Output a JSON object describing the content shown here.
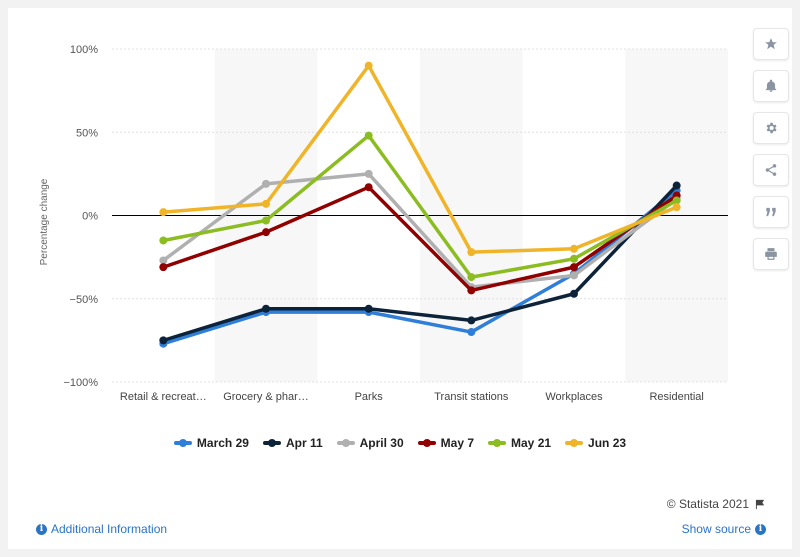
{
  "chart_data": {
    "type": "line",
    "title": "",
    "xlabel": "",
    "ylabel": "Percentage change",
    "categories": [
      "Retail & recreat…",
      "Grocery & phar…",
      "Parks",
      "Transit stations",
      "Workplaces",
      "Residential"
    ],
    "y_ticks": [
      "100%",
      "50%",
      "0%",
      "−50%",
      "−100%"
    ],
    "y_tick_values": [
      100,
      50,
      0,
      -50,
      -100
    ],
    "ylim": [
      -100,
      100
    ],
    "grid": true,
    "legend_position": "bottom",
    "series": [
      {
        "name": "March 29",
        "color": "#2f7ed8",
        "values": [
          -77,
          -58,
          -58,
          -70,
          -35,
          15
        ]
      },
      {
        "name": "Apr 11",
        "color": "#0d233a",
        "values": [
          -75,
          -56,
          -56,
          -63,
          -47,
          18
        ]
      },
      {
        "name": "April 30",
        "color": "#b0b0b0",
        "values": [
          -27,
          19,
          25,
          -43,
          -36,
          10
        ]
      },
      {
        "name": "May 7",
        "color": "#910000",
        "values": [
          -31,
          -10,
          17,
          -45,
          -31,
          12
        ]
      },
      {
        "name": "May 21",
        "color": "#8bbc21",
        "values": [
          -15,
          -3,
          48,
          -37,
          -26,
          9
        ]
      },
      {
        "name": "Jun 23",
        "color": "#f0b429",
        "values": [
          2,
          7,
          90,
          -22,
          -20,
          5
        ]
      }
    ]
  },
  "footer": {
    "credits": "© Statista 2021",
    "additional_info": "Additional Information",
    "show_source": "Show source"
  },
  "toolbar": {
    "icons": [
      "star-icon",
      "bell-icon",
      "gear-icon",
      "share-icon",
      "quote-icon",
      "print-icon"
    ]
  }
}
